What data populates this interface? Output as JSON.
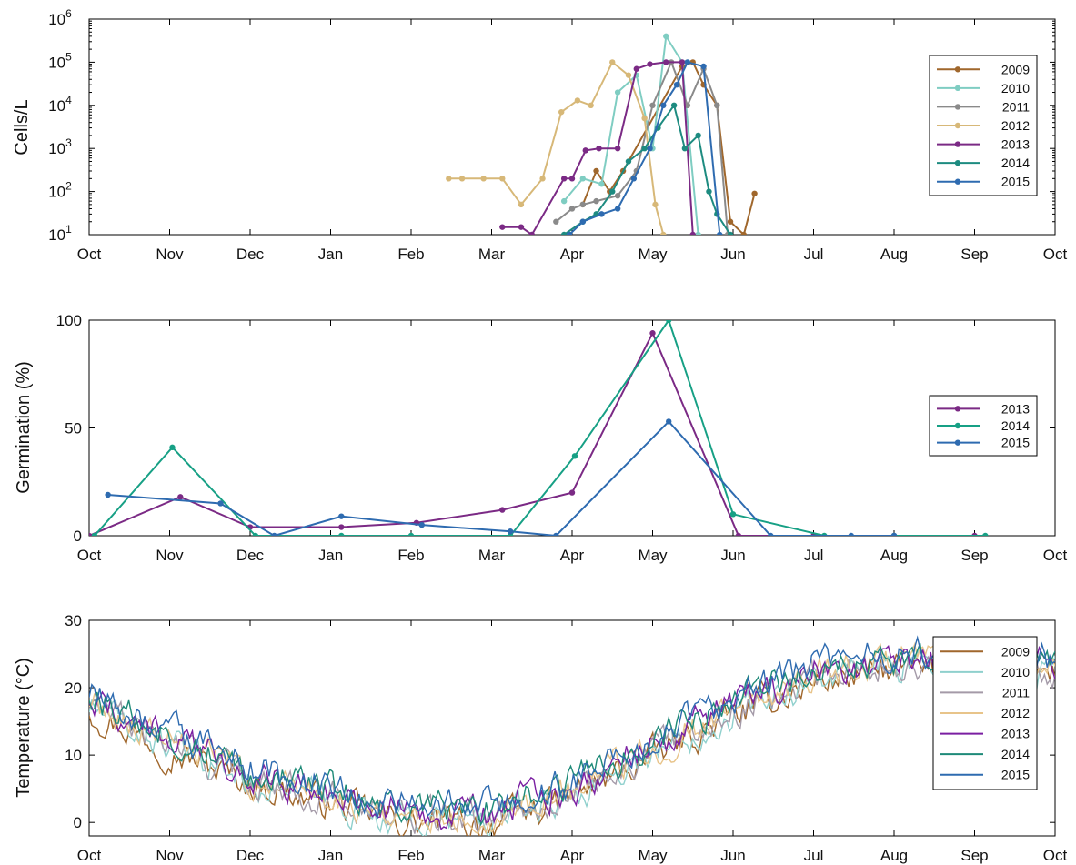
{
  "chart_data": [
    {
      "type": "line",
      "id": "cells",
      "ylabel": "Cells/L",
      "yscale": "log",
      "ylim": [
        10,
        1000000
      ],
      "yticks": [
        1,
        2,
        3,
        4,
        5,
        6
      ],
      "month_labels": [
        "Oct",
        "Nov",
        "Dec",
        "Jan",
        "Feb",
        "Mar",
        "Apr",
        "May",
        "Jun",
        "Jul",
        "Aug",
        "Sep",
        "Oct"
      ],
      "grid": false,
      "legend": "right",
      "markers": true,
      "series": [
        {
          "name": "2009",
          "color": "#a0672c",
          "x": [
            "Apr 05",
            "Apr 10",
            "Apr 15",
            "Apr 20",
            "May 12",
            "May 16",
            "May 20",
            "May 25",
            "May 30",
            "Jun 05",
            "Jun 09"
          ],
          "y": [
            50,
            300,
            100,
            300,
            80000,
            100000,
            30000,
            10000,
            20,
            10,
            90
          ]
        },
        {
          "name": "2010",
          "color": "#7fcdc2",
          "x": [
            "Mar 28",
            "Apr 05",
            "Apr 12",
            "Apr 18",
            "Apr 25",
            "May 01",
            "May 06",
            "May 12",
            "May 18"
          ],
          "y": [
            60,
            200,
            150,
            20000,
            50000,
            1000,
            400000,
            100000,
            10
          ]
        },
        {
          "name": "2011",
          "color": "#8a8a8a",
          "x": [
            "Mar 25",
            "Mar 31",
            "Apr 05",
            "Apr 10",
            "Apr 18",
            "Apr 25",
            "May 01",
            "May 08",
            "May 14",
            "May 20",
            "May 25",
            "May 29"
          ],
          "y": [
            20,
            40,
            50,
            60,
            80,
            300,
            10000,
            100000,
            10000,
            70000,
            10000,
            10
          ]
        },
        {
          "name": "2012",
          "color": "#d7b878",
          "x": [
            "Feb 15",
            "Feb 20",
            "Feb 28",
            "Mar 05",
            "Mar 12",
            "Mar 20",
            "Mar 27",
            "Apr 03",
            "Apr 08",
            "Apr 16",
            "Apr 22",
            "Apr 28",
            "May 02",
            "May 05"
          ],
          "y": [
            200,
            200,
            200,
            200,
            50,
            200,
            7000,
            13000,
            10000,
            100000,
            50000,
            5000,
            50,
            10
          ]
        },
        {
          "name": "2013",
          "color": "#7b2a85",
          "x": [
            "Mar 05",
            "Mar 12",
            "Mar 16",
            "Mar 28",
            "Apr 01",
            "Apr 06",
            "Apr 11",
            "Apr 18",
            "Apr 25",
            "Apr 30",
            "May 06",
            "May 12",
            "May 16"
          ],
          "y": [
            15,
            15,
            8,
            200,
            200,
            900,
            1000,
            1000,
            70000,
            90000,
            100000,
            100000,
            10
          ]
        },
        {
          "name": "2014",
          "color": "#1d8b80",
          "x": [
            "Mar 28",
            "Apr 05",
            "Apr 10",
            "Apr 16",
            "Apr 22",
            "Apr 28",
            "May 03",
            "May 09",
            "May 13",
            "May 18",
            "May 22",
            "May 25",
            "May 30"
          ],
          "y": [
            10,
            20,
            30,
            100,
            500,
            1000,
            3000,
            10000,
            1000,
            2000,
            100,
            30,
            10
          ]
        },
        {
          "name": "2015",
          "color": "#2e6bb0",
          "x": [
            "Mar 30",
            "Apr 05",
            "Apr 12",
            "Apr 18",
            "Apr 24",
            "Apr 30",
            "May 05",
            "May 10",
            "May 14",
            "May 20",
            "May 26"
          ],
          "y": [
            10,
            20,
            30,
            40,
            200,
            1000,
            10000,
            30000,
            100000,
            80000,
            10
          ]
        }
      ]
    },
    {
      "type": "line",
      "id": "germination",
      "ylabel": "Germination (%)",
      "ylim": [
        0,
        100
      ],
      "yticks": [
        0,
        50,
        100
      ],
      "month_labels": [
        "Oct",
        "Nov",
        "Dec",
        "Jan",
        "Feb",
        "Mar",
        "Apr",
        "May",
        "Jun",
        "Jul",
        "Aug",
        "Sep",
        "Oct"
      ],
      "grid": false,
      "legend": "right",
      "markers": true,
      "series": [
        {
          "name": "2013",
          "color": "#7b2a85",
          "x": [
            "Oct 01",
            "Nov 05",
            "Dec 01",
            "Jan 05",
            "Feb 03",
            "Mar 05",
            "Apr 01",
            "May 01",
            "Jun 03",
            "Jul 01",
            "Aug 01",
            "Sep 01"
          ],
          "y": [
            0,
            18,
            4,
            4,
            6,
            12,
            20,
            94,
            0,
            0,
            0,
            0
          ]
        },
        {
          "name": "2014",
          "color": "#17a085",
          "x": [
            "Oct 03",
            "Nov 02",
            "Dec 03",
            "Jan 05",
            "Feb 01",
            "Mar 08",
            "Apr 02",
            "May 07",
            "Jun 01",
            "Jul 05",
            "Aug 01",
            "Sep 05"
          ],
          "y": [
            0,
            41,
            0,
            0,
            0,
            0,
            37,
            100,
            10,
            0,
            0,
            0
          ]
        },
        {
          "name": "2015",
          "color": "#2e6bb0",
          "x": [
            "Oct 08",
            "Nov 20",
            "Dec 10",
            "Jan 05",
            "Feb 05",
            "Mar 08",
            "Mar 25",
            "May 07",
            "Jun 15",
            "Jul 15",
            "Aug 01"
          ],
          "y": [
            19,
            15,
            0,
            9,
            5,
            2,
            0,
            53,
            0,
            0,
            0
          ]
        }
      ]
    },
    {
      "type": "line",
      "id": "temperature",
      "ylabel": "Temperature (°C)",
      "ylim": [
        -2,
        30
      ],
      "yticks": [
        0,
        10,
        20,
        30
      ],
      "month_labels": [
        "Oct",
        "Nov",
        "Dec",
        "Jan",
        "Feb",
        "Mar",
        "Apr",
        "May",
        "Jun",
        "Jul",
        "Aug",
        "Sep",
        "Oct"
      ],
      "grid": false,
      "legend": "right",
      "markers": false,
      "seasonal_profile": {
        "x": [
          "Oct 01",
          "Nov 01",
          "Dec 01",
          "Jan 01",
          "Feb 01",
          "Mar 01",
          "Apr 01",
          "May 01",
          "Jun 01",
          "Jul 01",
          "Aug 01",
          "Sep 01",
          "Oct 01"
        ],
        "y": [
          18,
          12,
          7,
          4,
          1,
          1,
          5,
          11,
          17,
          22,
          24,
          23,
          19
        ]
      },
      "series": [
        {
          "name": "2009",
          "color": "#a0672c"
        },
        {
          "name": "2010",
          "color": "#8fd0cd"
        },
        {
          "name": "2011",
          "color": "#a49aa8"
        },
        {
          "name": "2012",
          "color": "#e8c48a"
        },
        {
          "name": "2013",
          "color": "#7b1fa2"
        },
        {
          "name": "2014",
          "color": "#1e8a78"
        },
        {
          "name": "2015",
          "color": "#2e6bb0"
        }
      ]
    }
  ]
}
